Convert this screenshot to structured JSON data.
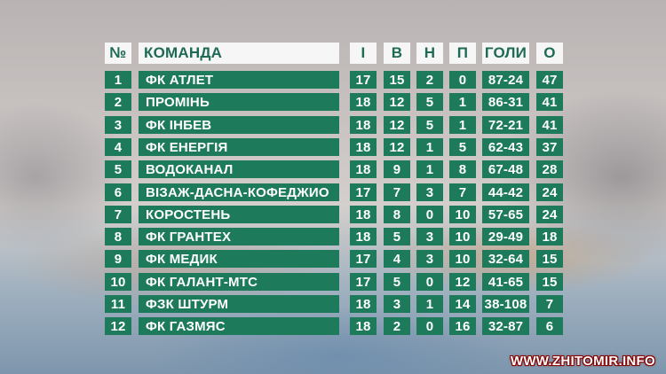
{
  "table": {
    "headers": {
      "num": "№",
      "team": "КОМАНДА",
      "played": "І",
      "wins": "В",
      "draws": "Н",
      "losses": "П",
      "goals": "ГОЛИ",
      "points": "О"
    },
    "rows": [
      {
        "num": "1",
        "team": "ФК АТЛЕТ",
        "played": "17",
        "wins": "15",
        "draws": "2",
        "losses": "0",
        "goals": "87-24",
        "points": "47"
      },
      {
        "num": "2",
        "team": "ПРОМІНЬ",
        "played": "18",
        "wins": "12",
        "draws": "5",
        "losses": "1",
        "goals": "86-31",
        "points": "41"
      },
      {
        "num": "3",
        "team": "ФК ІНБЕВ",
        "played": "18",
        "wins": "12",
        "draws": "5",
        "losses": "1",
        "goals": "72-21",
        "points": "41"
      },
      {
        "num": "4",
        "team": "ФК ЕНЕРГІЯ",
        "played": "18",
        "wins": "12",
        "draws": "1",
        "losses": "5",
        "goals": "62-43",
        "points": "37"
      },
      {
        "num": "5",
        "team": "ВОДОКАНАЛ",
        "played": "18",
        "wins": "9",
        "draws": "1",
        "losses": "8",
        "goals": "67-48",
        "points": "28"
      },
      {
        "num": "6",
        "team": "ВІЗАЖ-ДАСНА-КОФЕДЖИО",
        "played": "17",
        "wins": "7",
        "draws": "3",
        "losses": "7",
        "goals": "44-42",
        "points": "24"
      },
      {
        "num": "7",
        "team": "КОРОСТЕНЬ",
        "played": "18",
        "wins": "8",
        "draws": "0",
        "losses": "10",
        "goals": "57-65",
        "points": "24"
      },
      {
        "num": "8",
        "team": "ФК ГРАНТЕХ",
        "played": "18",
        "wins": "5",
        "draws": "3",
        "losses": "10",
        "goals": "29-49",
        "points": "18"
      },
      {
        "num": "9",
        "team": "ФК МЕДИК",
        "played": "17",
        "wins": "4",
        "draws": "3",
        "losses": "10",
        "goals": "32-64",
        "points": "15"
      },
      {
        "num": "10",
        "team": "ФК ГАЛАНТ-МТС",
        "played": "17",
        "wins": "5",
        "draws": "0",
        "losses": "12",
        "goals": "41-65",
        "points": "15"
      },
      {
        "num": "11",
        "team": "ФЗК ШТУРМ",
        "played": "18",
        "wins": "3",
        "draws": "1",
        "losses": "14",
        "goals": "38-108",
        "points": "7"
      },
      {
        "num": "12",
        "team": "ФК ГАЗМЯС",
        "played": "18",
        "wins": "2",
        "draws": "0",
        "losses": "16",
        "goals": "32-87",
        "points": "6"
      }
    ]
  },
  "watermark": "WWW.ZHITOMIR.INFO",
  "colors": {
    "row_bg": "#1d7a5a",
    "header_bg": "#f6f6f6",
    "header_text": "#1e6b55",
    "row_text": "#ffffff"
  }
}
